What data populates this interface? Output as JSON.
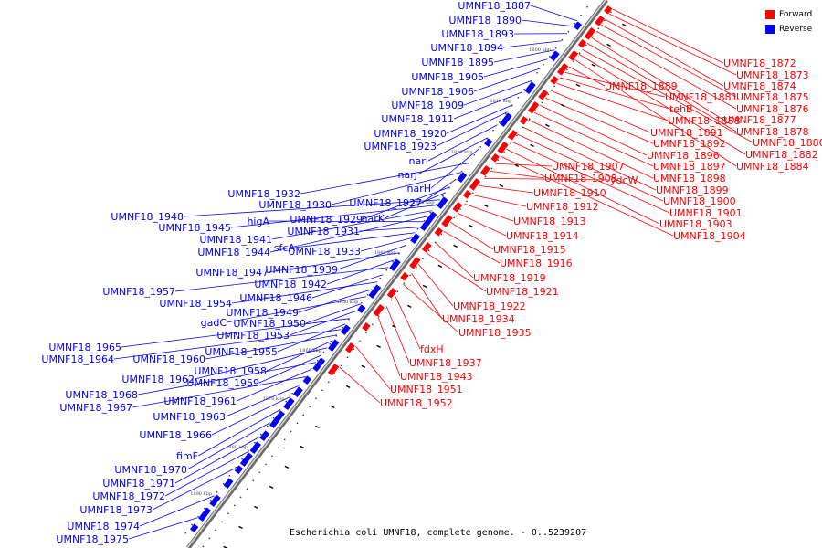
{
  "caption": "Escherichia coli UMNF18, complete genome. - 0..5239207",
  "legend": [
    {
      "label": "Forward",
      "color": "#ff0000"
    },
    {
      "label": "Reverse",
      "color": "#0000ff"
    }
  ],
  "ticks": [
    "1800 kbp",
    "1810 kbp",
    "1820 kbp",
    "1830 kbp",
    "1840 kbp",
    "1850 kbp",
    "1860 kbp",
    "1870 kbp",
    "1880 kbp",
    "1890 kbp"
  ],
  "forward_genes": [
    "UMNF18_1872",
    "UMNF18_1873",
    "UMNF18_1874",
    "UMNF18_1875",
    "UMNF18_1876",
    "UMNF18_1877",
    "UMNF18_1878",
    "UMNF18_1880",
    "UMNF18_1882",
    "UMNF18_1884",
    "UMNF18_1889",
    "UMNF18_1881",
    "tehB",
    "UMNF18_1888",
    "UMNF18_1891",
    "UMNF18_1892",
    "UMNF18_1896",
    "UMNF18_1897",
    "UMNF18_1898",
    "UMNF18_1899",
    "UMNF18_1900",
    "UMNF18_1901",
    "UMNF18_1903",
    "UMNF18_1904",
    "UMNF18_1907",
    "UMNF18_1908",
    "ydcW",
    "UMNF18_1910",
    "UMNF18_1912",
    "UMNF18_1913",
    "UMNF18_1914",
    "UMNF18_1915",
    "UMNF18_1916",
    "UMNF18_1919",
    "UMNF18_1921",
    "UMNF18_1922",
    "UMNF18_1934",
    "UMNF18_1935",
    "fdxH",
    "UMNF18_1937",
    "UMNF18_1943",
    "UMNF18_1951",
    "UMNF18_1952"
  ],
  "reverse_genes": [
    "UMNF18_1887",
    "UMNF18_1890",
    "UMNF18_1893",
    "UMNF18_1894",
    "UMNF18_1895",
    "UMNF18_1905",
    "UMNF18_1906",
    "UMNF18_1909",
    "UMNF18_1911",
    "UMNF18_1920",
    "UMNF18_1923",
    "narI",
    "narJ",
    "narH",
    "UMNF18_1932",
    "UMNF18_1930",
    "UMNF18_1927",
    "UMNF18_1929",
    "narK",
    "UMNF18_1948",
    "UMNF18_1945",
    "UMNF18_1941",
    "UMNF18_1944",
    "higA",
    "UMNF18_1931",
    "sfcA",
    "UMNF18_1933",
    "UMNF18_1939",
    "UMNF18_1947",
    "UMNF18_1942",
    "UMNF18_1957",
    "UMNF18_1946",
    "UMNF18_1954",
    "UMNF18_1949",
    "gadC",
    "UMNF18_1950",
    "UMNF18_1953",
    "UMNF18_1965",
    "UMNF18_1955",
    "UMNF18_1964",
    "UMNF18_1960",
    "UMNF18_1958",
    "UMNF18_1962",
    "UMNF18_1959",
    "UMNF18_1968",
    "UMNF18_1961",
    "UMNF18_1967",
    "UMNF18_1963",
    "UMNF18_1966",
    "fimF",
    "UMNF18_1970",
    "UMNF18_1971",
    "UMNF18_1972",
    "UMNF18_1973",
    "UMNF18_1974",
    "UMNF18_1975"
  ]
}
